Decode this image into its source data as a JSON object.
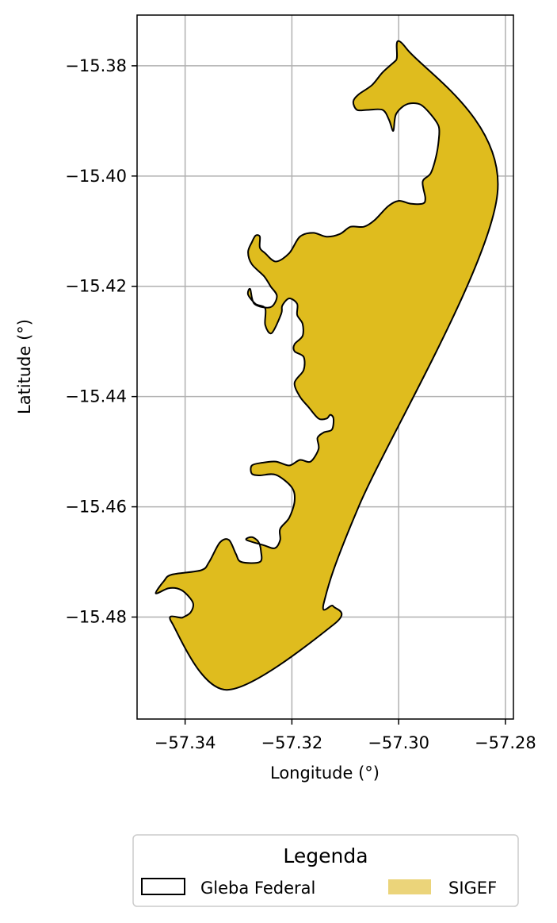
{
  "chart_data": {
    "type": "map",
    "xlabel": "Longitude (°)",
    "ylabel": "Latitude (°)",
    "xlim": [
      -57.349,
      -57.2785
    ],
    "ylim": [
      -15.4985,
      -15.3708
    ],
    "xticks": [
      -57.34,
      -57.32,
      -57.3,
      -57.28
    ],
    "xtick_labels": [
      "−57.34",
      "−57.32",
      "−57.30",
      "−57.28"
    ],
    "yticks": [
      -15.38,
      -15.4,
      -15.42,
      -15.44,
      -15.46,
      -15.48
    ],
    "ytick_labels": [
      "−15.38",
      "−15.40",
      "−15.42",
      "−15.44",
      "−15.46",
      "−15.48"
    ],
    "grid": true,
    "polygon_coords": [
      [
        -57.2985,
        -15.3769
      ],
      [
        -57.2815,
        -15.4032
      ],
      [
        -57.3075,
        -15.46
      ],
      [
        -57.314,
        -15.4774
      ],
      [
        -57.3123,
        -15.478
      ],
      [
        -57.3121,
        -15.4813
      ],
      [
        -57.3322,
        -15.4932
      ],
      [
        -57.3425,
        -15.481
      ],
      [
        -57.3405,
        -15.4801
      ],
      [
        -57.339,
        -15.4792
      ],
      [
        -57.3385,
        -15.4775
      ],
      [
        -57.34,
        -15.4756
      ],
      [
        -57.3415,
        -15.4748
      ],
      [
        -57.3432,
        -15.4748
      ],
      [
        -57.3455,
        -15.4757
      ],
      [
        -57.344,
        -15.4735
      ],
      [
        -57.3425,
        -15.4723
      ],
      [
        -57.337,
        -15.4715
      ],
      [
        -57.3355,
        -15.47
      ],
      [
        -57.3335,
        -15.4665
      ],
      [
        -57.3318,
        -15.466
      ],
      [
        -57.3305,
        -15.4685
      ],
      [
        -57.3295,
        -15.47
      ],
      [
        -57.326,
        -15.47
      ],
      [
        -57.3258,
        -15.468
      ],
      [
        -57.3263,
        -15.4663
      ],
      [
        -57.3275,
        -15.4655
      ],
      [
        -57.3285,
        -15.466
      ],
      [
        -57.3252,
        -15.467
      ],
      [
        -57.3232,
        -15.4675
      ],
      [
        -57.3222,
        -15.466
      ],
      [
        -57.3222,
        -15.464
      ],
      [
        -57.3205,
        -15.462
      ],
      [
        -57.3195,
        -15.459
      ],
      [
        -57.32,
        -15.4565
      ],
      [
        -57.323,
        -15.4542
      ],
      [
        -57.326,
        -15.4543
      ],
      [
        -57.3275,
        -15.454
      ],
      [
        -57.3275,
        -15.4525
      ],
      [
        -57.3255,
        -15.452
      ],
      [
        -57.323,
        -15.4518
      ],
      [
        -57.3205,
        -15.4525
      ],
      [
        -57.3185,
        -15.4515
      ],
      [
        -57.3165,
        -15.4518
      ],
      [
        -57.315,
        -15.4495
      ],
      [
        -57.3152,
        -15.4475
      ],
      [
        -57.314,
        -15.4465
      ],
      [
        -57.3125,
        -15.446
      ],
      [
        -57.3122,
        -15.444
      ],
      [
        -57.3128,
        -15.4433
      ],
      [
        -57.3135,
        -15.444
      ],
      [
        -57.315,
        -15.444
      ],
      [
        -57.3168,
        -15.442
      ],
      [
        -57.3185,
        -15.44
      ],
      [
        -57.3195,
        -15.4375
      ],
      [
        -57.3178,
        -15.4352
      ],
      [
        -57.3178,
        -15.4328
      ],
      [
        -57.3195,
        -15.4318
      ],
      [
        -57.3195,
        -15.4305
      ],
      [
        -57.318,
        -15.429
      ],
      [
        -57.318,
        -15.4268
      ],
      [
        -57.319,
        -15.4252
      ],
      [
        -57.319,
        -15.4232
      ],
      [
        -57.3205,
        -15.4222
      ],
      [
        -57.3218,
        -15.4235
      ],
      [
        -57.322,
        -15.425
      ],
      [
        -57.3238,
        -15.4285
      ],
      [
        -57.325,
        -15.427
      ],
      [
        -57.325,
        -15.424
      ],
      [
        -57.3268,
        -15.4232
      ],
      [
        -57.3282,
        -15.4215
      ],
      [
        -57.3278,
        -15.4205
      ],
      [
        -57.327,
        -15.4232
      ],
      [
        -57.324,
        -15.4238
      ],
      [
        -57.3228,
        -15.4218
      ],
      [
        -57.324,
        -15.42
      ],
      [
        -57.3252,
        -15.4182
      ],
      [
        -57.3275,
        -15.416
      ],
      [
        -57.3282,
        -15.4138
      ],
      [
        -57.3275,
        -15.412
      ],
      [
        -57.3268,
        -15.4108
      ],
      [
        -57.326,
        -15.411
      ],
      [
        -57.326,
        -15.413
      ],
      [
        -57.325,
        -15.414
      ],
      [
        -57.323,
        -15.4155
      ],
      [
        -57.3205,
        -15.414
      ],
      [
        -57.3185,
        -15.411
      ],
      [
        -57.316,
        -15.4103
      ],
      [
        -57.3135,
        -15.411
      ],
      [
        -57.311,
        -15.4105
      ],
      [
        -57.309,
        -15.4092
      ],
      [
        -57.3065,
        -15.4092
      ],
      [
        -57.3045,
        -15.408
      ],
      [
        -57.302,
        -15.4055
      ],
      [
        -57.3,
        -15.4045
      ],
      [
        -57.2978,
        -15.405
      ],
      [
        -57.2955,
        -15.405
      ],
      [
        -57.295,
        -15.404
      ],
      [
        -57.2955,
        -15.401
      ],
      [
        -57.294,
        -15.3995
      ],
      [
        -57.293,
        -15.3965
      ],
      [
        -57.2925,
        -15.3935
      ],
      [
        -57.2925,
        -15.391
      ],
      [
        -57.294,
        -15.3888
      ],
      [
        -57.296,
        -15.387
      ],
      [
        -57.2985,
        -15.387
      ],
      [
        -57.3005,
        -15.3888
      ],
      [
        -57.301,
        -15.3918
      ],
      [
        -57.3018,
        -15.3898
      ],
      [
        -57.303,
        -15.388
      ],
      [
        -57.3058,
        -15.388
      ],
      [
        -57.3078,
        -15.388
      ],
      [
        -57.3085,
        -15.3865
      ],
      [
        -57.3075,
        -15.3852
      ],
      [
        -57.305,
        -15.3835
      ],
      [
        -57.303,
        -15.3812
      ],
      [
        -57.3005,
        -15.379
      ]
    ]
  },
  "legend": {
    "title": "Legenda",
    "items": [
      {
        "label": "Gleba Federal",
        "style": "outline",
        "color": "#000000"
      },
      {
        "label": "SIGEF",
        "style": "filled",
        "color": "#DFBC1E"
      }
    ]
  },
  "colors": {
    "fill": "#DFBC1E",
    "legend_fill": "#EBD47A",
    "edge": "#000000",
    "grid": "#B0B0B0"
  }
}
